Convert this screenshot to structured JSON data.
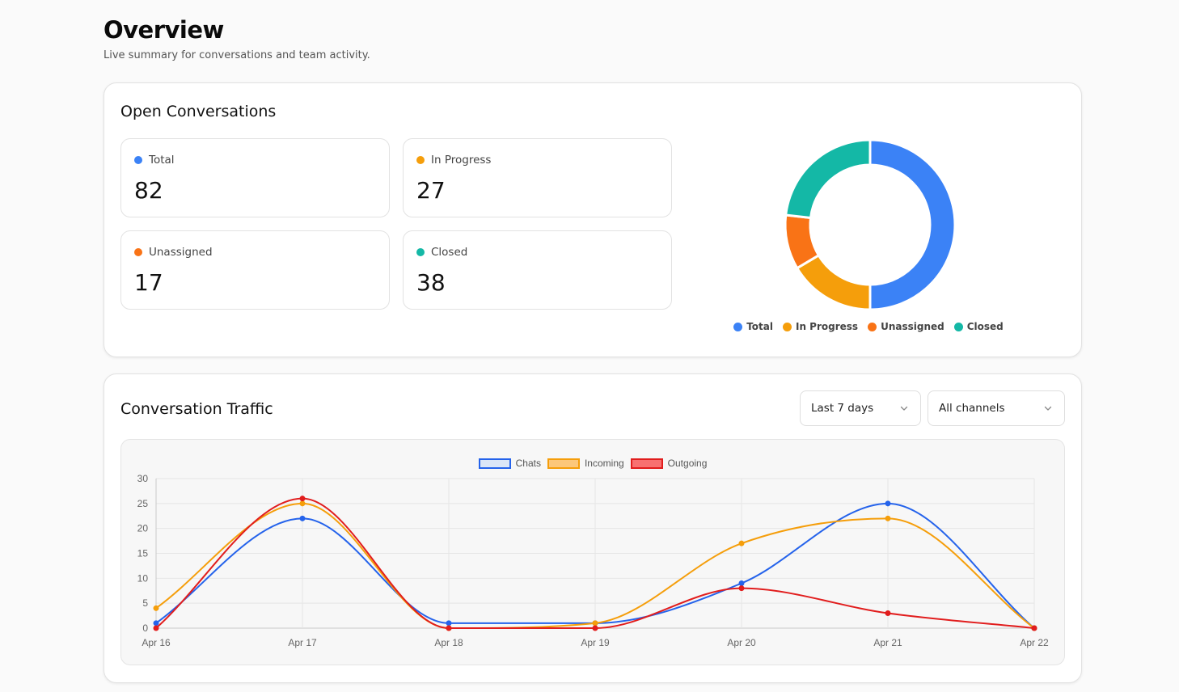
{
  "header": {
    "title": "Overview",
    "subtitle": "Live summary for conversations and team activity."
  },
  "open_conversations": {
    "title": "Open Conversations",
    "stats": [
      {
        "label": "Total",
        "value": "82",
        "color": "#3b82f6"
      },
      {
        "label": "In Progress",
        "value": "27",
        "color": "#f59e0b"
      },
      {
        "label": "Unassigned",
        "value": "17",
        "color": "#f97316"
      },
      {
        "label": "Closed",
        "value": "38",
        "color": "#14b8a6"
      }
    ]
  },
  "traffic": {
    "title": "Conversation Traffic",
    "range_select": {
      "value": "Last 7 days",
      "icon": "chevron-down-icon"
    },
    "channel_select": {
      "value": "All channels",
      "icon": "chevron-down-icon"
    }
  },
  "chart_data": [
    {
      "type": "pie",
      "variant": "doughnut",
      "categories": [
        "Total",
        "In Progress",
        "Unassigned",
        "Closed"
      ],
      "values": [
        82,
        27,
        17,
        38
      ],
      "colors": [
        "#3b82f6",
        "#f59e0b",
        "#f97316",
        "#14b8a6"
      ],
      "legend": "bottom"
    },
    {
      "type": "line",
      "categories": [
        "Apr 16",
        "Apr 17",
        "Apr 18",
        "Apr 19",
        "Apr 20",
        "Apr 21",
        "Apr 22"
      ],
      "series": [
        {
          "name": "Chats",
          "values": [
            1,
            22,
            1,
            1,
            9,
            25,
            0
          ],
          "color": "#2563eb",
          "fill": "#dbe6f7"
        },
        {
          "name": "Incoming",
          "values": [
            4,
            25,
            0,
            1,
            17,
            22,
            0
          ],
          "color": "#f59e0b",
          "fill": "#fcc77a"
        },
        {
          "name": "Outgoing",
          "values": [
            0,
            26,
            0,
            0,
            8,
            3,
            0
          ],
          "color": "#e11d1d",
          "fill": "#f87171"
        }
      ],
      "ylim": [
        0,
        30
      ],
      "yticks": [
        0,
        5,
        10,
        15,
        20,
        25,
        30
      ],
      "grid": true,
      "legend": "top"
    }
  ]
}
